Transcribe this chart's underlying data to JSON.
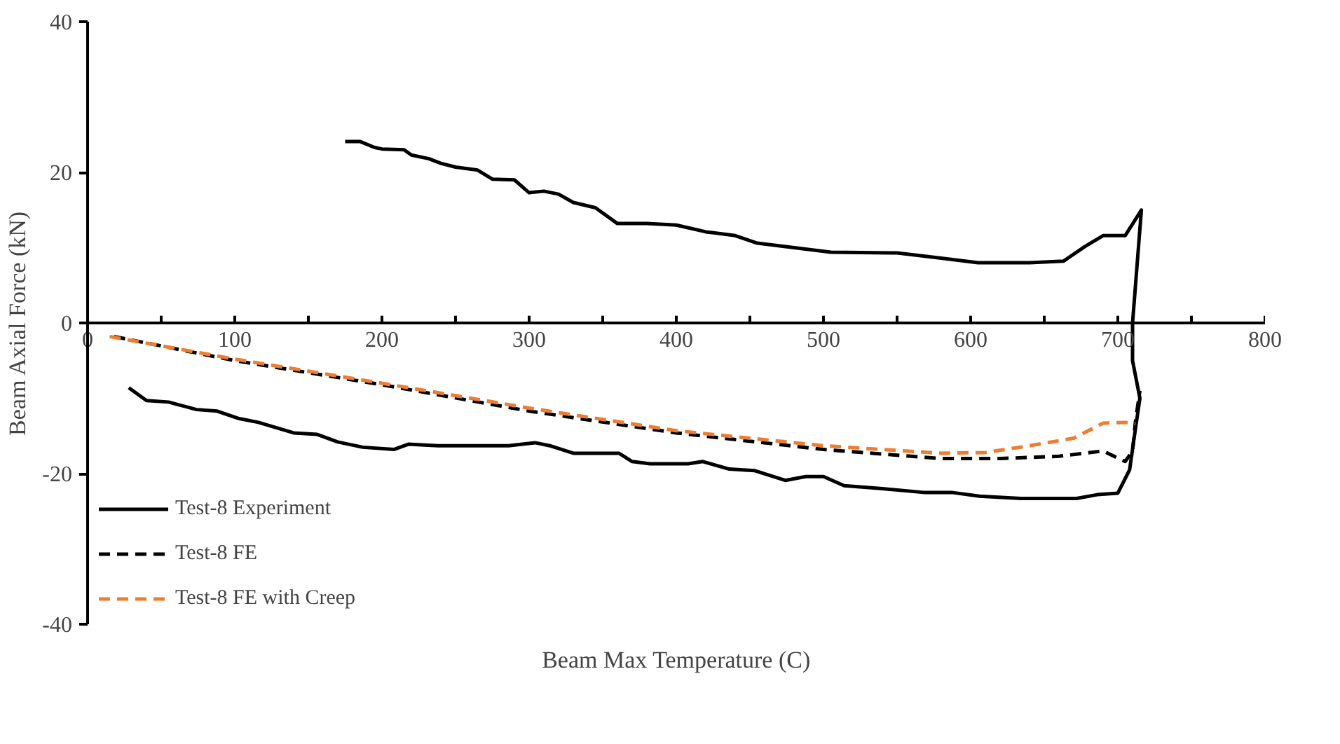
{
  "chart_data": {
    "type": "line",
    "xlabel": "Beam Max Temperature (C)",
    "ylabel": "Beam Axial Force (kN)",
    "xlim": [
      0,
      800
    ],
    "ylim": [
      -40,
      40
    ],
    "xticks": [
      0,
      {
        "value": 50,
        "label": null
      },
      100,
      {
        "value": 150,
        "label": null
      },
      200,
      {
        "value": 250,
        "label": null
      },
      300,
      {
        "value": 350,
        "label": null
      },
      400,
      {
        "value": 450,
        "label": null
      },
      500,
      {
        "value": 550,
        "label": null
      },
      600,
      {
        "value": 650,
        "label": null
      },
      700,
      {
        "value": 750,
        "label": null
      },
      800
    ],
    "yticks": [
      -40,
      -20,
      0,
      20,
      40
    ],
    "grid": false,
    "legend": "bottom left",
    "marker": "none",
    "series": [
      {
        "name": "Test-8 Experiment",
        "color": "#000000",
        "line_style": "solid",
        "x": [
          28,
          40,
          55,
          74,
          88,
          103,
          116,
          140,
          156,
          170,
          187,
          208,
          218,
          238,
          286,
          304,
          314,
          330,
          361,
          370,
          382,
          408,
          418,
          436,
          453,
          474,
          488,
          500,
          514,
          540,
          568,
          587,
          606,
          634,
          672,
          686,
          700,
          708,
          712,
          715,
          710,
          710,
          712,
          716,
          705,
          690,
          678,
          663,
          640,
          605,
          580,
          550,
          505,
          480,
          455,
          440,
          420,
          400,
          380,
          360,
          345,
          330,
          320,
          310,
          300,
          290,
          275,
          265,
          250,
          240,
          232,
          220,
          215,
          200,
          195,
          185,
          175
        ],
        "values": [
          -8.6,
          -10.3,
          -10.5,
          -11.5,
          -11.7,
          -12.7,
          -13.2,
          -14.6,
          -14.8,
          -15.8,
          -16.5,
          -16.8,
          -16.1,
          -16.3,
          -16.3,
          -15.9,
          -16.3,
          -17.3,
          -17.3,
          -18.4,
          -18.7,
          -18.7,
          -18.4,
          -19.4,
          -19.6,
          -20.9,
          -20.4,
          -20.4,
          -21.6,
          -22.0,
          -22.5,
          -22.5,
          -23.0,
          -23.3,
          -23.3,
          -22.8,
          -22.6,
          -19.5,
          -14,
          -10,
          -5,
          0,
          5,
          15,
          11.6,
          11.6,
          10.2,
          8.2,
          8.0,
          8.0,
          8.6,
          9.3,
          9.4,
          10,
          10.6,
          11.6,
          12.1,
          13,
          13.2,
          13.2,
          15.3,
          16,
          17.1,
          17.5,
          17.3,
          19,
          19.1,
          20.3,
          20.7,
          21.2,
          21.8,
          22.3,
          23,
          23.1,
          23.3,
          24.1,
          24.1
        ]
      },
      {
        "name": "Test-8 FE",
        "color": "#000000",
        "line_style": "dashed",
        "x": [
          18,
          100,
          200,
          300,
          400,
          500,
          580,
          620,
          660,
          690,
          705,
          710,
          712,
          715
        ],
        "values": [
          -1.8,
          -5,
          -8.2,
          -11.7,
          -14.6,
          -16.8,
          -18,
          -18,
          -17.7,
          -17,
          -18.4,
          -17,
          -13,
          -9
        ]
      },
      {
        "name": "Test-8 FE with Creep",
        "color": "#ed7d31",
        "line_style": "dashed",
        "x": [
          15,
          100,
          200,
          300,
          400,
          500,
          580,
          610,
          640,
          670,
          690,
          705,
          712
        ],
        "values": [
          -1.8,
          -4.8,
          -8,
          -11.3,
          -14.3,
          -16.3,
          -17.3,
          -17.2,
          -16.3,
          -15.3,
          -13.3,
          -13.2,
          -13.4
        ]
      }
    ]
  }
}
